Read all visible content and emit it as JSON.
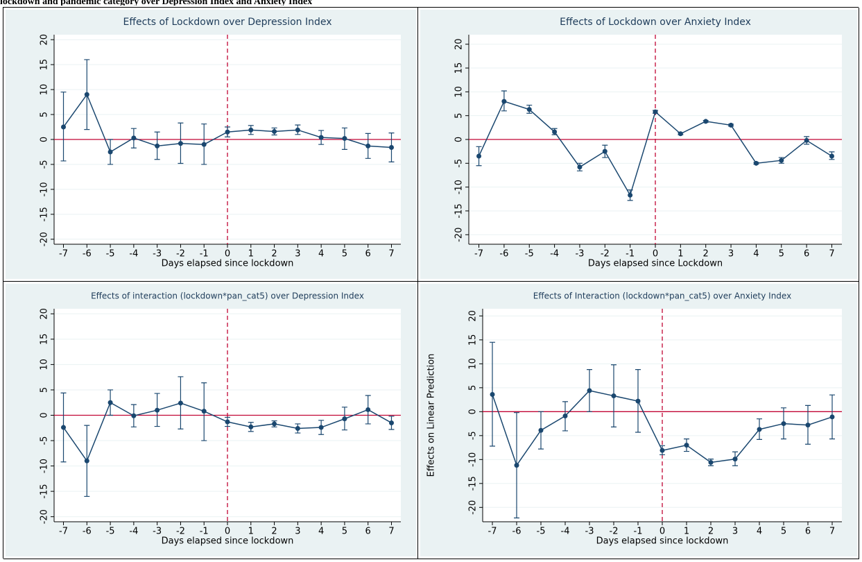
{
  "caption": "lockdown and pandemic category over Depression Index and Anxiety Index",
  "chart_data": [
    {
      "type": "line",
      "title": "Effects of Lockdown over Depression Index",
      "x_label": "Days elapsed since lockdown",
      "x": [
        -7,
        -6,
        -5,
        -4,
        -3,
        -2,
        -1,
        0,
        1,
        2,
        3,
        4,
        5,
        6,
        7
      ],
      "values": [
        2.5,
        9,
        -2.5,
        0.3,
        -1.3,
        -0.8,
        -1,
        1.5,
        1.9,
        1.6,
        1.9,
        0.4,
        0.2,
        -1.3,
        -1.6
      ],
      "ci_low": [
        -4.3,
        2,
        -5,
        -1.7,
        -4,
        -4.8,
        -5,
        0.5,
        1,
        0.9,
        1,
        -1,
        -2,
        -3.8,
        -4.5
      ],
      "ci_high": [
        9.5,
        16,
        0,
        2.2,
        1.5,
        3.3,
        3.1,
        2.5,
        2.8,
        2.3,
        2.9,
        1.8,
        2.3,
        1.2,
        1.3
      ],
      "color": "#1a476f",
      "xlim": [
        -7.4,
        7.4
      ],
      "xticks": [
        -7,
        -6,
        -5,
        -4,
        -3,
        -2,
        -1,
        0,
        1,
        2,
        3,
        4,
        5,
        6,
        7
      ],
      "ylim": [
        -21,
        21
      ],
      "yticks": [
        -20,
        -15,
        -10,
        -5,
        0,
        5,
        10,
        15,
        20
      ],
      "grid": true,
      "hline": 0,
      "vline": 0
    },
    {
      "type": "line",
      "title": "Effects of Lockdown over Anxiety Index",
      "x_label": "Days elapsed since Lockdown",
      "x": [
        -7,
        -6,
        -5,
        -4,
        -3,
        -2,
        -1,
        0,
        1,
        2,
        3,
        4,
        5,
        6,
        7
      ],
      "values": [
        -3.5,
        8,
        6.3,
        1.6,
        -5.8,
        -2.5,
        -11.7,
        5.8,
        1.2,
        3.8,
        3,
        -5,
        -4.4,
        -0.2,
        -3.5
      ],
      "ci_low": [
        -5.5,
        6,
        5.5,
        1,
        -6.6,
        -3.8,
        -12.8,
        5.5,
        1,
        3.6,
        2.8,
        -5.2,
        -5,
        -1,
        -4.2
      ],
      "ci_high": [
        -1.5,
        10.2,
        7.2,
        2.3,
        -5,
        -1.2,
        -10.6,
        6.1,
        1.4,
        4,
        3.2,
        -4.8,
        -3.8,
        0.6,
        -2.6
      ],
      "color": "#1a476f",
      "xlim": [
        -7.4,
        7.4
      ],
      "xticks": [
        -7,
        -6,
        -5,
        -4,
        -3,
        -2,
        -1,
        0,
        1,
        2,
        3,
        4,
        5,
        6,
        7
      ],
      "ylim": [
        -22,
        22
      ],
      "yticks": [
        -20,
        -15,
        -10,
        -5,
        0,
        5,
        10,
        15,
        20
      ],
      "grid": true,
      "hline": 0,
      "vline": 0
    },
    {
      "type": "line",
      "title": "Effects of interaction (lockdown*pan_cat5) over Depression Index",
      "x_label": "Days elapsed since lockdown",
      "x": [
        -7,
        -6,
        -5,
        -4,
        -3,
        -2,
        -1,
        0,
        1,
        2,
        3,
        4,
        5,
        6,
        7
      ],
      "values": [
        -2.4,
        -9,
        2.5,
        -0.1,
        1,
        2.4,
        0.8,
        -1.3,
        -2.3,
        -1.7,
        -2.6,
        -2.4,
        -0.7,
        1.1,
        -1.5
      ],
      "ci_low": [
        -9.2,
        -16,
        0,
        -2.3,
        -2.2,
        -2.7,
        -5,
        -2.2,
        -3.2,
        -2.3,
        -3.5,
        -3.8,
        -2.9,
        -1.7,
        -2.8
      ],
      "ci_high": [
        4.4,
        -2,
        5,
        2.1,
        4.3,
        7.6,
        6.4,
        -0.4,
        -1.4,
        -1.1,
        -1.7,
        -1,
        1.6,
        3.9,
        -0.2
      ],
      "color": "#1a476f",
      "xlim": [
        -7.4,
        7.4
      ],
      "xticks": [
        -7,
        -6,
        -5,
        -4,
        -3,
        -2,
        -1,
        0,
        1,
        2,
        3,
        4,
        5,
        6,
        7
      ],
      "ylim": [
        -21,
        21
      ],
      "yticks": [
        -20,
        -15,
        -10,
        -5,
        0,
        5,
        10,
        15,
        20
      ],
      "grid": true,
      "hline": 0,
      "vline": 0
    },
    {
      "type": "line",
      "title": "Effects of Interaction (lockdown*pan_cat5) over Anxiety Index",
      "x_label": "Days elapsed since lockdown",
      "y_label": "Effects on Linear Prediction",
      "x": [
        -7,
        -6,
        -5,
        -4,
        -3,
        -2,
        -1,
        0,
        1,
        2,
        3,
        4,
        5,
        6,
        7
      ],
      "values": [
        3.6,
        -11.2,
        -3.9,
        -0.9,
        4.4,
        3.3,
        2.2,
        -8.1,
        -7,
        -10.6,
        -9.9,
        -3.7,
        -2.5,
        -2.8,
        -1.1
      ],
      "ci_low": [
        -7.2,
        -22.2,
        -7.8,
        -4,
        0,
        -3.2,
        -4.3,
        -9,
        -8.3,
        -11.3,
        -11.3,
        -5.8,
        -5.7,
        -6.8,
        -5.7
      ],
      "ci_high": [
        14.5,
        -0.2,
        0,
        2.1,
        8.8,
        9.8,
        8.8,
        -7.1,
        -5.7,
        -9.9,
        -8.4,
        -1.5,
        0.8,
        1.3,
        3.5
      ],
      "color": "#1a476f",
      "xlim": [
        -7.4,
        7.4
      ],
      "xticks": [
        -7,
        -6,
        -5,
        -4,
        -3,
        -2,
        -1,
        0,
        1,
        2,
        3,
        4,
        5,
        6,
        7
      ],
      "ylim": [
        -23,
        21.5
      ],
      "yticks": [
        -20,
        -15,
        -10,
        -5,
        0,
        5,
        10,
        15,
        20
      ],
      "grid": true,
      "hline": 0,
      "vline": 0
    }
  ]
}
